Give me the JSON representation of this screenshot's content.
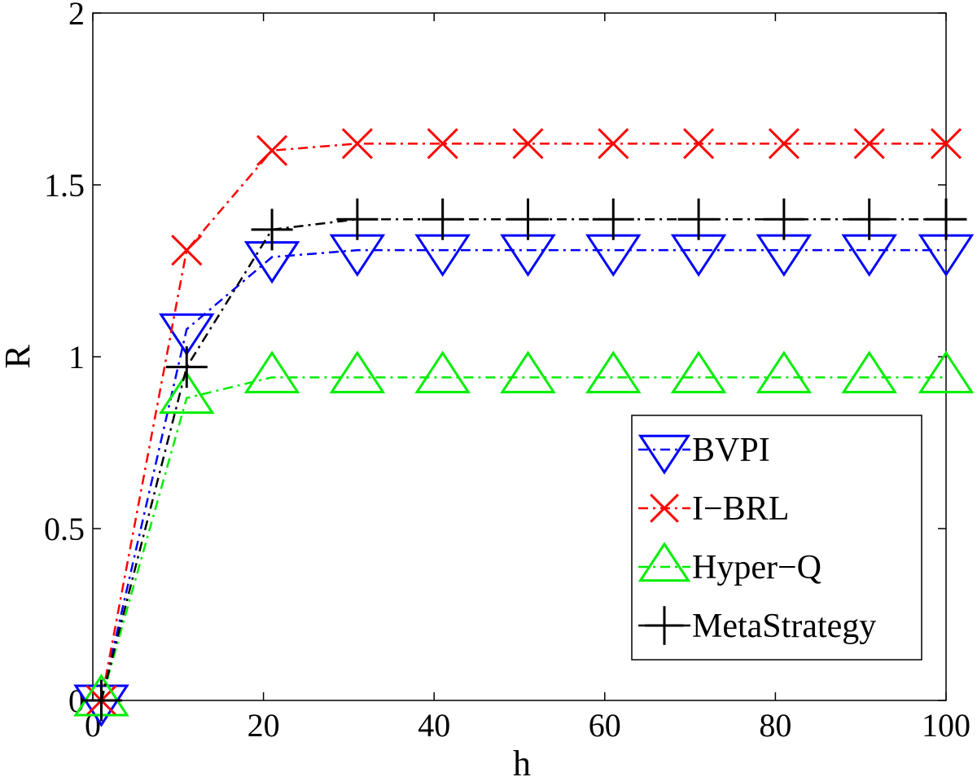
{
  "chart_data": {
    "type": "line",
    "xlabel": "h",
    "ylabel": "R",
    "xlim": [
      0,
      100
    ],
    "ylim": [
      0,
      2
    ],
    "xticks": [
      0,
      20,
      40,
      60,
      80,
      100
    ],
    "xtick_labels": [
      "0",
      "20",
      "40",
      "60",
      "80",
      "100"
    ],
    "yticks": [
      0,
      0.5,
      1,
      1.5,
      2
    ],
    "ytick_labels": [
      "0",
      "0.5",
      "1",
      "1.5",
      "2"
    ],
    "grid": false,
    "legend_position": "bottom-right",
    "x": [
      1,
      11,
      21,
      31,
      41,
      51,
      61,
      71,
      81,
      91,
      100
    ],
    "series": [
      {
        "name": "BVPI",
        "color": "#0000ff",
        "marker": "triangle-down",
        "line_style": "dash-dot",
        "values": [
          0,
          1.08,
          1.29,
          1.31,
          1.31,
          1.31,
          1.31,
          1.31,
          1.31,
          1.31,
          1.31
        ]
      },
      {
        "name": "I−BRL",
        "color": "#ff0000",
        "marker": "x",
        "line_style": "dash-dot",
        "values": [
          0,
          1.31,
          1.6,
          1.62,
          1.62,
          1.62,
          1.62,
          1.62,
          1.62,
          1.62,
          1.62
        ]
      },
      {
        "name": "Hyper−Q",
        "color": "#00ee00",
        "marker": "triangle-up",
        "line_style": "dash-dot",
        "values": [
          0,
          0.88,
          0.94,
          0.94,
          0.94,
          0.94,
          0.94,
          0.94,
          0.94,
          0.94,
          0.94
        ]
      },
      {
        "name": "MetaStrategy",
        "color": "#000000",
        "marker": "plus",
        "line_style": "dash-dot",
        "values": [
          0,
          0.97,
          1.37,
          1.4,
          1.4,
          1.4,
          1.4,
          1.4,
          1.4,
          1.4,
          1.4
        ]
      }
    ]
  }
}
